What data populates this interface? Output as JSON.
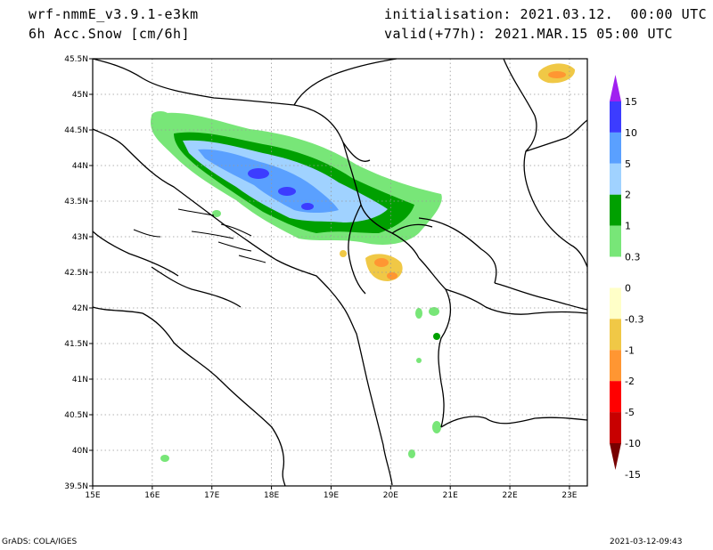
{
  "header": {
    "model": "wrf-nmmE_v3.9.1-e3km",
    "variable": "6h Acc.Snow [cm/6h]",
    "initialisation": "initialisation: 2021.03.12.  00:00 UTC",
    "valid": "valid(+77h): 2021.MAR.15 05:00 UTC"
  },
  "footer": {
    "credit": "GrADS: COLA/IGES",
    "timestamp": "2021-03-12-09:43"
  },
  "map": {
    "lon_range": [
      15,
      23.3
    ],
    "lat_range": [
      39.5,
      45.5
    ],
    "lon_ticks": [
      "15E",
      "16E",
      "17E",
      "18E",
      "19E",
      "20E",
      "21E",
      "22E",
      "23E"
    ],
    "lat_ticks": [
      "39.5N",
      "40N",
      "40.5N",
      "41N",
      "41.5N",
      "42N",
      "42.5N",
      "43N",
      "43.5N",
      "44N",
      "44.5N",
      "45N",
      "45.5N"
    ],
    "grid": "dotted"
  },
  "legend": {
    "labels": [
      "15",
      "10",
      "5",
      "2",
      "1",
      "0.3",
      "0",
      "-0.3",
      "-1",
      "-2",
      "-5",
      "-10",
      "-15"
    ],
    "colors": [
      "#a020f0",
      "#3c3cff",
      "#5aa0ff",
      "#a0d2ff",
      "#00a000",
      "#78e678",
      "#ffffff",
      "#ffffc8",
      "#f0c846",
      "#ff9632",
      "#ff0000",
      "#c80000",
      "#780000"
    ]
  }
}
